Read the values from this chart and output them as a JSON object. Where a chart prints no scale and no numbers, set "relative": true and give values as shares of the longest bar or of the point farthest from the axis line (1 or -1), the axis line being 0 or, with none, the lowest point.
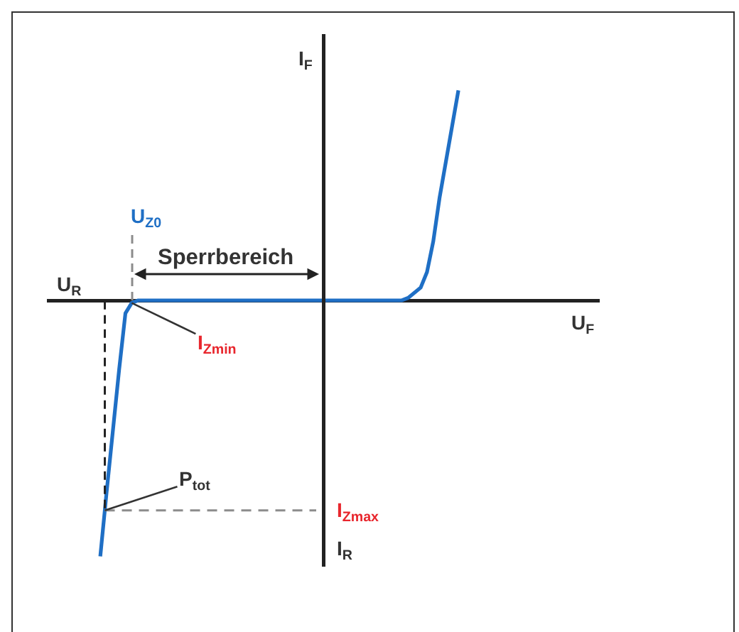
{
  "chart_data": {
    "type": "line",
    "relative": true,
    "categories": [
      null,
      null,
      null,
      null,
      null,
      null,
      null,
      null,
      null,
      null,
      null,
      null,
      null,
      null,
      null,
      null,
      null,
      null,
      null,
      null,
      null,
      null,
      null,
      null,
      null,
      null,
      null,
      null,
      null,
      null,
      null,
      null,
      null,
      null,
      null,
      null,
      null,
      null,
      null,
      null,
      null,
      null,
      null,
      null,
      null,
      null,
      null,
      null,
      null,
      null,
      null,
      null,
      null,
      null,
      null,
      null,
      null,
      null,
      null,
      null,
      null,
      null,
      null,
      null,
      null,
      null,
      null,
      null,
      null,
      null,
      null,
      null,
      null,
      null,
      null,
      null,
      null,
      null,
      null,
      null,
      null,
      null,
      null,
      null,
      null,
      null,
      null,
      null
    ],
    "series": [
      {
        "color": "#1f6fc5",
        "values": [
          null,
          null,
          null,
          null,
          null,
          null,
          null,
          null,
          -1,
          -0.75,
          -0.51,
          -0.27,
          -0.05,
          -0.01,
          0,
          0,
          0,
          0,
          0,
          0,
          0,
          0,
          0,
          0,
          0,
          0,
          0,
          0,
          0,
          0,
          0,
          0,
          0,
          0,
          0,
          0,
          0,
          0,
          0,
          0,
          0,
          0,
          0,
          0,
          0,
          0,
          0,
          0,
          0,
          0,
          0,
          0,
          0,
          0,
          0,
          0,
          0,
          0.01,
          0.03,
          0.05,
          0.11,
          0.23,
          0.4,
          0.54,
          0.68,
          0.82,
          null,
          null,
          null,
          null,
          null,
          null,
          null,
          null,
          null,
          null,
          null,
          null,
          null,
          null,
          null,
          null,
          null,
          null,
          null,
          null,
          null,
          null
        ]
      }
    ],
    "xlabel": "U$_{F}$",
    "ylabel": "I$_{F}$",
    "annotations": [
      "U$_{Z0}$",
      "Sperrbereich",
      "U$_{R}$",
      {
        "text": "I$_{Zmin}$",
        "y": -0.01
      },
      {
        "text": "P$_{tot}$",
        "y": -0.82
      },
      "I$_{R}$"
    ],
    "ref_lines": [
      {
        "axis": "y",
        "value": -0.82,
        "label": "I$_{Zmax}$",
        "color": "#8c8c8c",
        "line_style": "dashed"
      }
    ]
  }
}
